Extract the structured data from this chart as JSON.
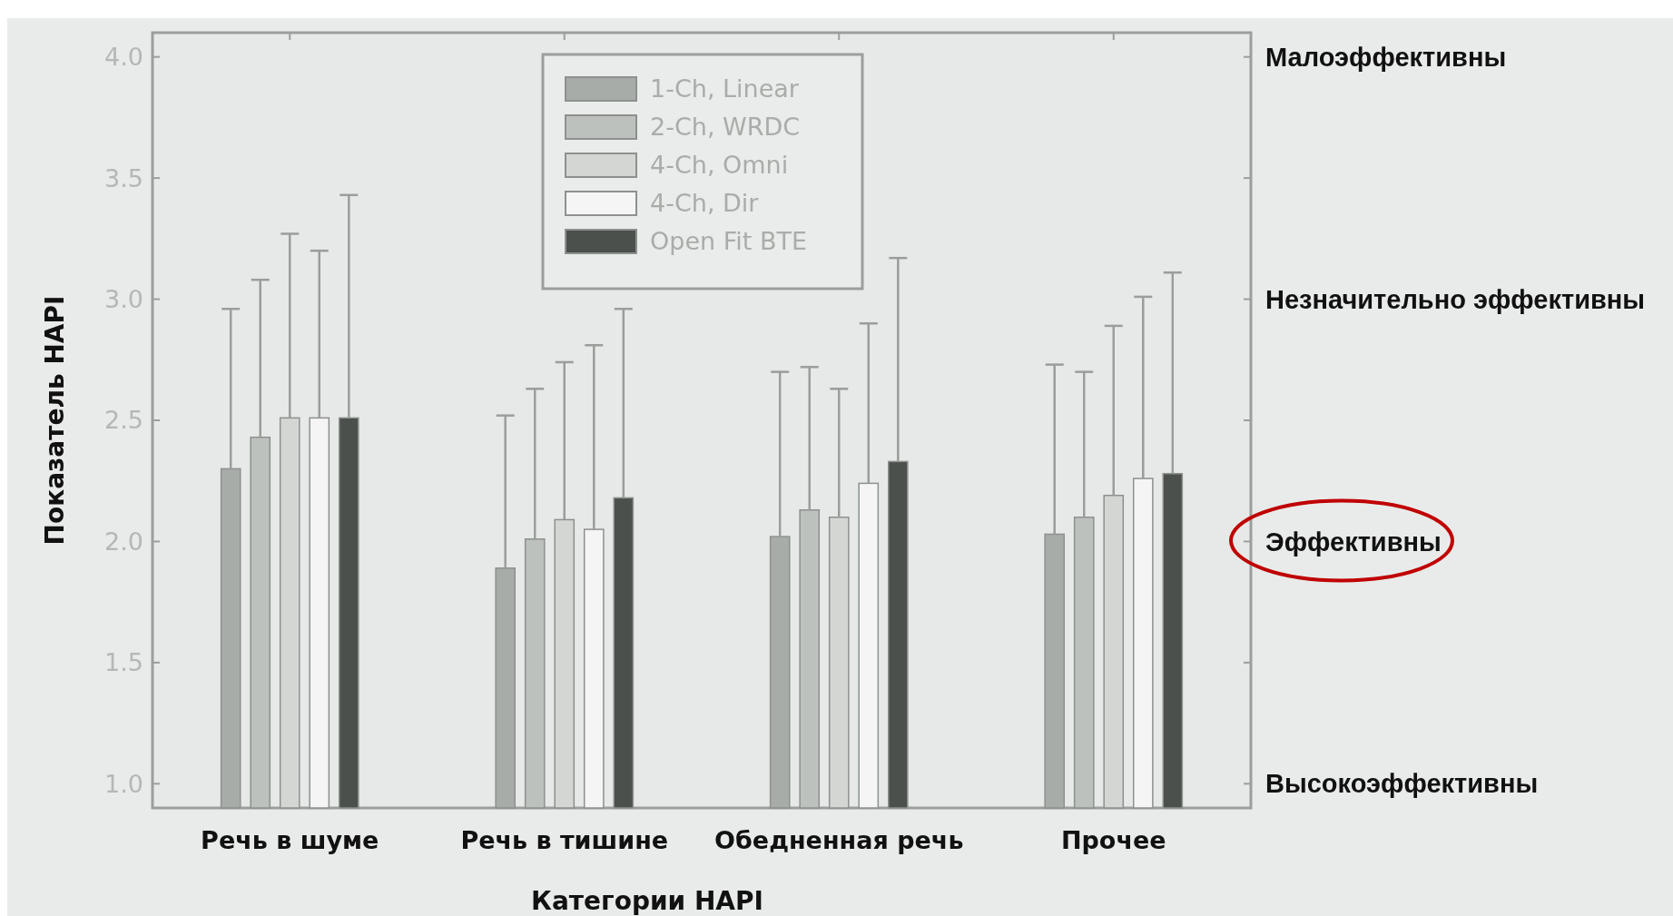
{
  "chart_data": {
    "type": "bar",
    "xlabel": "Категории HAPI",
    "ylabel": "Показатель HAPI",
    "categories": [
      "Речь в шуме",
      "Речь в тишине",
      "Обедненная речь",
      "Прочее"
    ],
    "series": [
      {
        "name": "1-Ch, Linear",
        "color": "#a8aca8",
        "values": [
          2.3,
          1.89,
          2.02,
          2.03
        ],
        "errors": [
          [
            2.3,
            2.96
          ],
          [
            1.89,
            2.52
          ],
          [
            2.02,
            2.7
          ],
          [
            2.03,
            2.73
          ]
        ]
      },
      {
        "name": "2-Ch, WRDC",
        "color": "#bdc1bd",
        "values": [
          2.43,
          2.01,
          2.13,
          2.1
        ],
        "errors": [
          [
            2.43,
            3.08
          ],
          [
            2.01,
            2.63
          ],
          [
            2.13,
            2.72
          ],
          [
            2.1,
            2.7
          ]
        ]
      },
      {
        "name": "4-Ch, Omni",
        "color": "#d3d6d3",
        "values": [
          2.51,
          2.09,
          2.1,
          2.19
        ],
        "errors": [
          [
            2.51,
            3.27
          ],
          [
            2.09,
            2.74
          ],
          [
            2.1,
            2.63
          ],
          [
            2.19,
            2.89
          ]
        ]
      },
      {
        "name": "4-Ch, Dir",
        "color": "#f4f5f4",
        "values": [
          2.51,
          2.05,
          2.24,
          2.26
        ],
        "errors": [
          [
            2.51,
            3.2
          ],
          [
            2.05,
            2.81
          ],
          [
            2.24,
            2.9
          ],
          [
            2.26,
            3.01
          ]
        ]
      },
      {
        "name": "Open Fit BTE",
        "color": "#4b504c",
        "values": [
          2.51,
          2.18,
          2.33,
          2.28
        ],
        "errors": [
          [
            2.51,
            3.43
          ],
          [
            2.18,
            2.96
          ],
          [
            2.33,
            3.17
          ],
          [
            2.28,
            3.11
          ]
        ]
      }
    ],
    "ylim": [
      0.9,
      4.1
    ],
    "yticks": [
      {
        "value": 1,
        "label": "1.0"
      },
      1.5,
      {
        "value": 2,
        "label": "2.0"
      },
      2.5,
      {
        "value": 3,
        "label": "3.0"
      },
      3.5,
      {
        "value": 4,
        "label": "4.0"
      }
    ],
    "annotations": [
      "Малоэффективны",
      "Незначительно эффективны",
      "Эффективны",
      "Высокоэффективны"
    ],
    "legend": "top",
    "grid": false
  }
}
